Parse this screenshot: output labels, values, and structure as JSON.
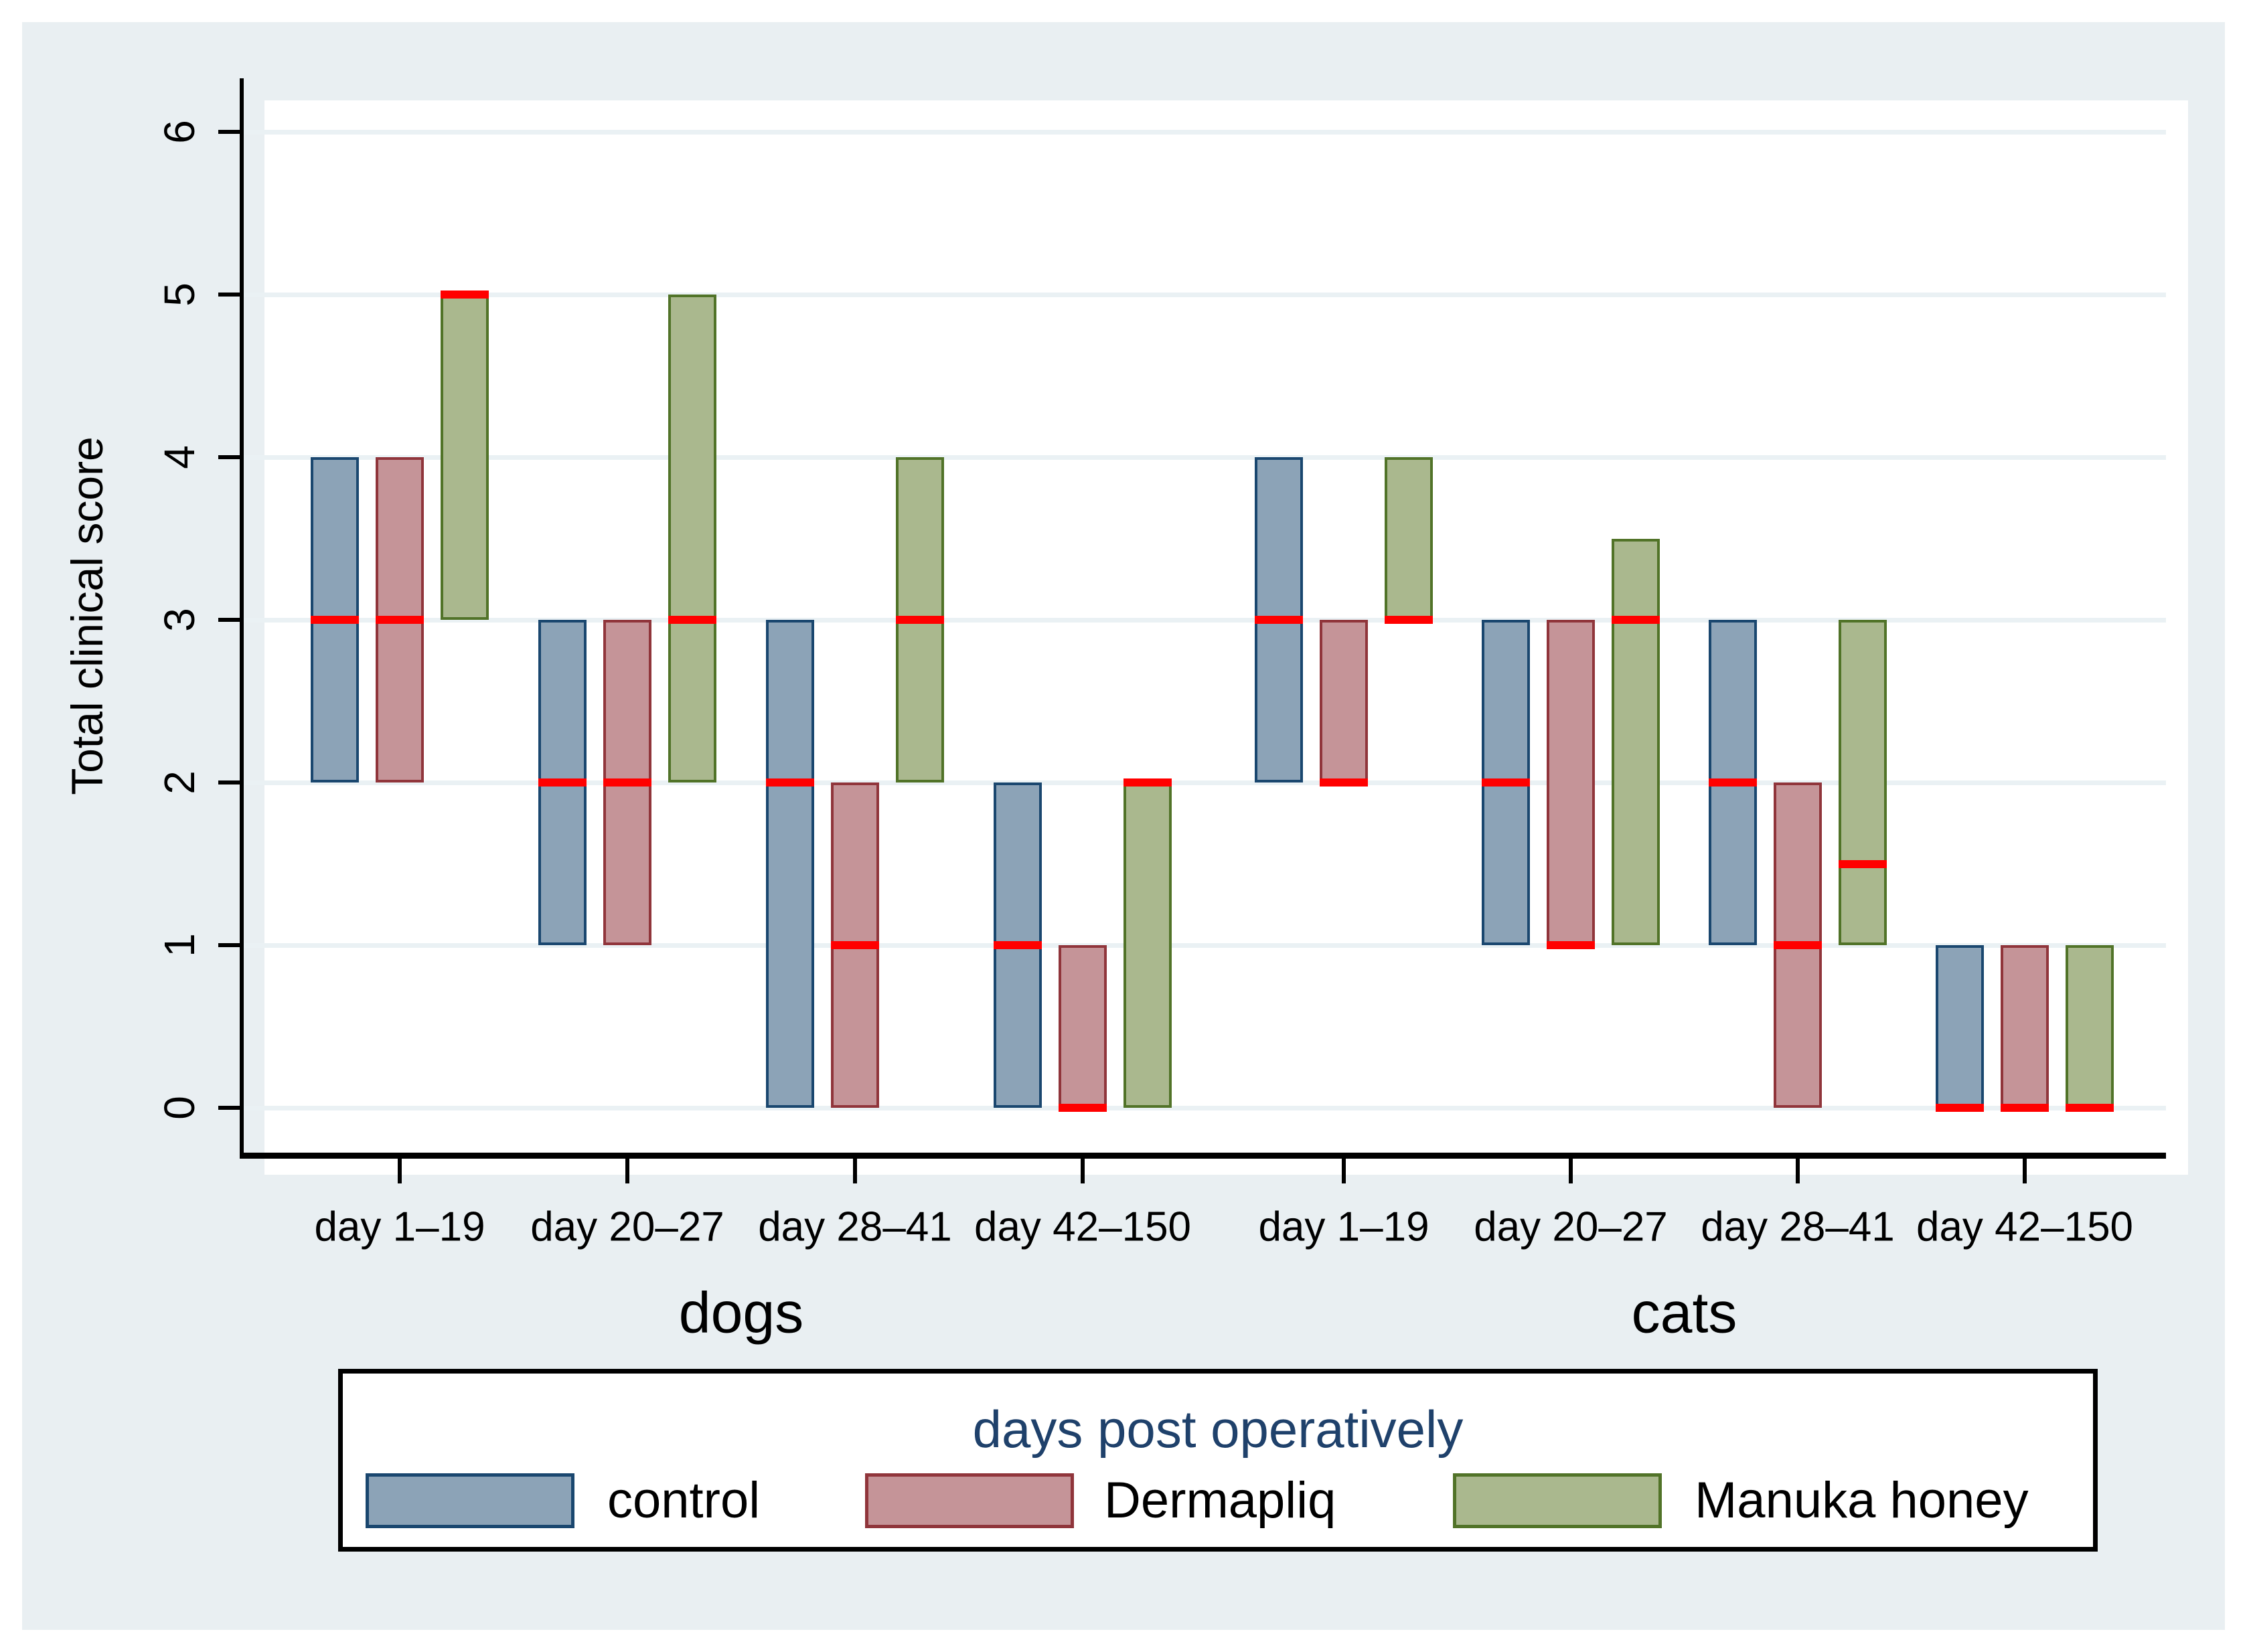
{
  "figure": {
    "background_color": "#E9EFF2",
    "plot_background": "#ffffff",
    "gridline_color": "#EAF1F4"
  },
  "chart_data": {
    "type": "bar",
    "subtype": "range-bar-with-median",
    "title": "",
    "xlabel": "",
    "ylabel": "Total clinical score",
    "ylim": [
      0,
      6
    ],
    "y_ticks": [
      0,
      1,
      2,
      3,
      4,
      5,
      6
    ],
    "grid": "on",
    "median_color": "#FF0000",
    "series": [
      {
        "name": "control",
        "fill": "#8CA3B7",
        "border": "#1A476F"
      },
      {
        "name": "Dermapliq",
        "fill": "#C59498",
        "border": "#90353B"
      },
      {
        "name": "Manuka honey",
        "fill": "#AAB88E",
        "border": "#517328"
      }
    ],
    "sections": [
      {
        "label": "dogs",
        "groups": [
          {
            "label": "day 1–19",
            "bars": [
              {
                "min": 2,
                "max": 4,
                "median": 3
              },
              {
                "min": 2,
                "max": 4,
                "median": 3
              },
              {
                "min": 3,
                "max": 5,
                "median": 5
              }
            ]
          },
          {
            "label": "day 20–27",
            "bars": [
              {
                "min": 1,
                "max": 3,
                "median": 2
              },
              {
                "min": 1,
                "max": 3,
                "median": 2
              },
              {
                "min": 2,
                "max": 5,
                "median": 3
              }
            ]
          },
          {
            "label": "day 28–41",
            "bars": [
              {
                "min": 0,
                "max": 3,
                "median": 2
              },
              {
                "min": 0,
                "max": 2,
                "median": 1
              },
              {
                "min": 2,
                "max": 4,
                "median": 3
              }
            ]
          },
          {
            "label": "day 42–150",
            "bars": [
              {
                "min": 0,
                "max": 2,
                "median": 1
              },
              {
                "min": 0,
                "max": 1,
                "median": 0
              },
              {
                "min": 0,
                "max": 2,
                "median": 2
              }
            ]
          }
        ]
      },
      {
        "label": "cats",
        "groups": [
          {
            "label": "day 1–19",
            "bars": [
              {
                "min": 2,
                "max": 4,
                "median": 3
              },
              {
                "min": 2,
                "max": 3,
                "median": 2
              },
              {
                "min": 3,
                "max": 4,
                "median": 3
              }
            ]
          },
          {
            "label": "day 20–27",
            "bars": [
              {
                "min": 1,
                "max": 3,
                "median": 2
              },
              {
                "min": 1,
                "max": 3,
                "median": 1
              },
              {
                "min": 1,
                "max": 3.5,
                "median": 3
              }
            ]
          },
          {
            "label": "day 28–41",
            "bars": [
              {
                "min": 1,
                "max": 3,
                "median": 2
              },
              {
                "min": 0,
                "max": 2,
                "median": 1
              },
              {
                "min": 1,
                "max": 3,
                "median": 1.5
              }
            ]
          },
          {
            "label": "day 42–150",
            "bars": [
              {
                "min": 0,
                "max": 1,
                "median": 0
              },
              {
                "min": 0,
                "max": 1,
                "median": 0
              },
              {
                "min": 0,
                "max": 1,
                "median": 0
              }
            ]
          }
        ]
      }
    ],
    "legend": {
      "title": "days post operatively",
      "title_color": "#1F416B",
      "position": "bottom",
      "entries": [
        "control",
        "Dermapliq",
        "Manuka honey"
      ]
    }
  }
}
